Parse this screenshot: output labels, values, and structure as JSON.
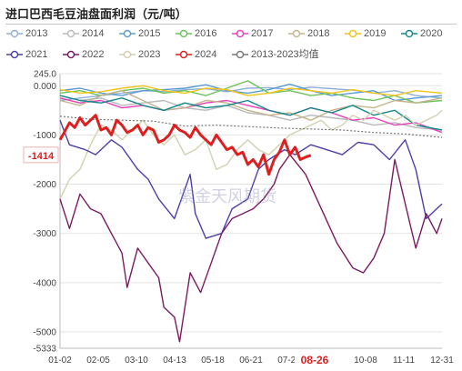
{
  "title": "进口巴西毛豆油盘面利润（元/吨）",
  "watermark": "紫金天风期货",
  "current_value_label": "-1414",
  "current_date_label": "08-26",
  "colors": {
    "2013": "#8fb0d8",
    "2014": "#b9b9b9",
    "2015": "#5b9bd5",
    "2016": "#6cc35a",
    "2017": "#e83fb8",
    "2018": "#c6b489",
    "2019": "#f2c318",
    "2020": "#15868a",
    "2021": "#4b3fa8",
    "2022": "#7a1a62",
    "2023": "#d2d0b0",
    "2024": "#dd1f1f",
    "avg": "#777777",
    "current_label": "#dd1f1f"
  },
  "chart_data": {
    "type": "line",
    "title": "进口巴西毛豆油盘面利润（元/吨）",
    "xlabel": "",
    "ylabel": "",
    "x_ticks": [
      "01-02",
      "02-05",
      "03-10",
      "04-13",
      "05-18",
      "06-21",
      "07-26",
      "08-26",
      "10-08",
      "11-11",
      "12-31"
    ],
    "x_domain": [
      1,
      365
    ],
    "y_ticks": [
      245.0,
      0.0,
      -1000,
      -2000,
      -3000,
      -4000,
      -5000,
      -5333
    ],
    "y_tick_labels": [
      "245.0",
      "0.000",
      "-1000",
      "-2000",
      "-3000",
      "-4000",
      "-5000",
      "-5333"
    ],
    "ylim": [
      -5333,
      245
    ],
    "grid": "horizontal",
    "legend_position": "top",
    "x_unit": "day of year",
    "series": [
      {
        "name": "2013",
        "style": "line",
        "x": [
          1,
          20,
          40,
          60,
          80,
          100,
          120,
          140,
          160,
          180,
          200,
          220,
          240,
          260,
          280,
          300,
          320,
          340,
          365
        ],
        "y": [
          -300,
          -250,
          -200,
          -150,
          -100,
          -120,
          -80,
          -60,
          -120,
          -50,
          -40,
          -80,
          -30,
          -60,
          -90,
          -150,
          -100,
          -200,
          -250
        ]
      },
      {
        "name": "2014",
        "style": "line",
        "x": [
          1,
          20,
          40,
          60,
          80,
          100,
          120,
          140,
          160,
          180,
          200,
          220,
          240,
          260,
          280,
          300,
          320,
          340,
          365
        ],
        "y": [
          -200,
          -300,
          -250,
          -400,
          -350,
          -300,
          -450,
          -500,
          -400,
          -550,
          -600,
          -700,
          -600,
          -650,
          -700,
          -800,
          -750,
          -850,
          -900
        ]
      },
      {
        "name": "2015",
        "style": "line",
        "x": [
          1,
          20,
          40,
          60,
          80,
          100,
          120,
          140,
          160,
          180,
          200,
          220,
          240,
          260,
          280,
          300,
          320,
          340,
          365
        ],
        "y": [
          -100,
          -50,
          -150,
          -200,
          -100,
          -80,
          -50,
          20,
          -100,
          -150,
          -80,
          30,
          -100,
          -200,
          -150,
          -100,
          -300,
          -250,
          -200
        ]
      },
      {
        "name": "2016",
        "style": "line",
        "x": [
          1,
          20,
          40,
          60,
          80,
          100,
          120,
          140,
          160,
          180,
          200,
          220,
          240,
          260,
          280,
          300,
          320,
          340,
          365
        ],
        "y": [
          -150,
          -100,
          -200,
          -100,
          -50,
          -150,
          -100,
          -200,
          -50,
          100,
          -150,
          -100,
          -200,
          -150,
          -250,
          -300,
          -200,
          -350,
          -300
        ]
      },
      {
        "name": "2017",
        "style": "line",
        "x": [
          1,
          20,
          40,
          60,
          80,
          100,
          120,
          140,
          160,
          180,
          200,
          220,
          240,
          260,
          280,
          300,
          320,
          340,
          365
        ],
        "y": [
          -250,
          -350,
          -300,
          -450,
          -400,
          -500,
          -450,
          -350,
          -300,
          -400,
          -500,
          -600,
          -450,
          -550,
          -700,
          -650,
          -800,
          -750,
          -950
        ]
      },
      {
        "name": "2018",
        "style": "line",
        "x": [
          1,
          20,
          40,
          60,
          80,
          100,
          120,
          140,
          160,
          180,
          200,
          220,
          240,
          260,
          280,
          300,
          320,
          340,
          365
        ],
        "y": [
          -300,
          -400,
          -200,
          -100,
          -300,
          -500,
          -450,
          -300,
          -350,
          -500,
          -600,
          -550,
          -700,
          -500,
          -400,
          -450,
          -300,
          -350,
          -250
        ]
      },
      {
        "name": "2019",
        "style": "line",
        "x": [
          1,
          20,
          40,
          60,
          80,
          100,
          120,
          140,
          160,
          180,
          200,
          220,
          240,
          260,
          280,
          300,
          320,
          340,
          365
        ],
        "y": [
          -80,
          -150,
          -120,
          -50,
          0,
          -100,
          -150,
          -50,
          -80,
          -200,
          -150,
          -50,
          -100,
          -150,
          -80,
          -150,
          -200,
          -100,
          -150
        ]
      },
      {
        "name": "2020",
        "style": "line",
        "x": [
          1,
          20,
          40,
          60,
          80,
          100,
          120,
          140,
          160,
          180,
          200,
          220,
          240,
          260,
          280,
          300,
          320,
          340,
          365
        ],
        "y": [
          -200,
          -300,
          -350,
          -250,
          -400,
          -500,
          -350,
          -450,
          -400,
          -300,
          -500,
          -600,
          -450,
          -550,
          -400,
          -600,
          -500,
          -800,
          -900
        ]
      },
      {
        "name": "2021",
        "style": "line",
        "x": [
          1,
          10,
          25,
          35,
          50,
          60,
          75,
          85,
          95,
          110,
          125,
          130,
          140,
          155,
          165,
          180,
          190,
          200,
          215,
          225,
          240,
          255,
          270,
          285,
          300,
          315,
          330,
          340,
          350,
          360,
          365
        ],
        "y": [
          -700,
          -1200,
          -1300,
          -1400,
          -1100,
          -1250,
          -1700,
          -1900,
          -2300,
          -2700,
          -1800,
          -2600,
          -3100,
          -3000,
          -2500,
          -2300,
          -1700,
          -1500,
          -1300,
          -1400,
          -1200,
          -1300,
          -1400,
          -1150,
          -1200,
          -1500,
          -1100,
          -1700,
          -2700,
          -2500,
          -2400
        ]
      },
      {
        "name": "2022",
        "style": "line",
        "x": [
          1,
          10,
          20,
          30,
          40,
          50,
          60,
          65,
          75,
          85,
          95,
          100,
          110,
          115,
          125,
          135,
          145,
          155,
          165,
          175,
          185,
          195,
          205,
          210,
          220,
          235,
          250,
          265,
          280,
          290,
          300,
          310,
          320,
          330,
          340,
          350,
          360,
          365
        ],
        "y": [
          -2300,
          -2900,
          -2200,
          -2500,
          -2600,
          -3000,
          -3400,
          -4100,
          -3300,
          -3600,
          -3900,
          -4500,
          -4700,
          -5200,
          -3800,
          -4200,
          -3600,
          -3000,
          -2700,
          -2600,
          -2500,
          -2300,
          -2000,
          -1700,
          -1400,
          -1800,
          -2500,
          -3200,
          -3700,
          -3800,
          -3500,
          -3000,
          -1500,
          -2400,
          -3300,
          -2600,
          -3000,
          -2700
        ]
      },
      {
        "name": "2023",
        "style": "line",
        "x": [
          1,
          10,
          20,
          30,
          40,
          50,
          60,
          70,
          80,
          90,
          100,
          110,
          120,
          130,
          140,
          150,
          160,
          170,
          180,
          190,
          200,
          210,
          220,
          230,
          240,
          250,
          260,
          270,
          280,
          290,
          300,
          310,
          320,
          330,
          340,
          350,
          360,
          365
        ],
        "y": [
          -2300,
          -1900,
          -1700,
          -1200,
          -800,
          -900,
          -1100,
          -900,
          -700,
          -1000,
          -1200,
          -1000,
          -1400,
          -1300,
          -1100,
          -1700,
          -1600,
          -1300,
          -1100,
          -1300,
          -1400,
          -1200,
          -1000,
          -900,
          -800,
          -700,
          -900,
          -800,
          -600,
          -700,
          -500,
          -600,
          -700,
          -600,
          -800,
          -700,
          -600,
          -500
        ]
      },
      {
        "name": "2024",
        "style": "line",
        "x": [
          1,
          5,
          10,
          15,
          20,
          25,
          30,
          35,
          40,
          45,
          50,
          55,
          60,
          65,
          70,
          75,
          80,
          85,
          90,
          95,
          100,
          105,
          110,
          115,
          120,
          125,
          130,
          135,
          140,
          145,
          150,
          155,
          160,
          165,
          170,
          175,
          180,
          185,
          190,
          195,
          200,
          205,
          210,
          215,
          220,
          225,
          230,
          235,
          240
        ],
        "y": [
          -1100,
          -950,
          -750,
          -850,
          -650,
          -800,
          -700,
          -600,
          -900,
          -850,
          -1000,
          -700,
          -800,
          -950,
          -900,
          -800,
          -1000,
          -850,
          -900,
          -1150,
          -1100,
          -1000,
          -800,
          -900,
          -950,
          -1050,
          -850,
          -1000,
          -1100,
          -1200,
          -1000,
          -1150,
          -1300,
          -1250,
          -1400,
          -1350,
          -1600,
          -1500,
          -1650,
          -1400,
          -1800,
          -1500,
          -1350,
          -1100,
          -1400,
          -1250,
          -1500,
          -1450,
          -1414
        ]
      },
      {
        "name": "2013-2023均值",
        "style": "dotted",
        "x": [
          1,
          30,
          60,
          90,
          120,
          150,
          180,
          210,
          240,
          270,
          300,
          330,
          365
        ],
        "y": [
          -620,
          -680,
          -700,
          -720,
          -820,
          -800,
          -830,
          -860,
          -880,
          -900,
          -950,
          -980,
          -1050
        ]
      }
    ]
  }
}
